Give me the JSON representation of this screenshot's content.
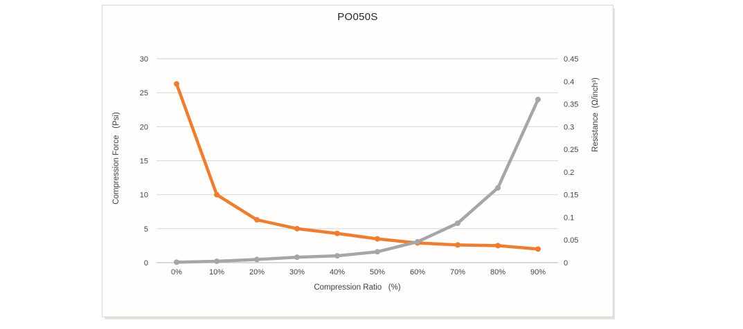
{
  "chart_data": {
    "type": "line",
    "title": "PO050S",
    "xlabel": "Compression Ratio   (%)",
    "ylabel_left": "Compression Force   (Psi)",
    "ylabel_right": "Resistance  (Ω/inch³)",
    "categories": [
      "0%",
      "10%",
      "20%",
      "30%",
      "40%",
      "50%",
      "60%",
      "70%",
      "80%",
      "90%"
    ],
    "series": [
      {
        "id": "compression-force",
        "name": "Compression Force",
        "axis": "left",
        "color": "#ED7D31",
        "values": [
          26.3,
          10.0,
          6.3,
          5.0,
          4.3,
          3.5,
          2.9,
          2.6,
          2.5,
          2.0
        ]
      },
      {
        "id": "resistance",
        "name": "Resistance",
        "axis": "right",
        "color": "#A6A6A6",
        "values": [
          0.001,
          0.003,
          0.007,
          0.012,
          0.015,
          0.024,
          0.046,
          0.087,
          0.165,
          0.36
        ]
      }
    ],
    "y_left_ticks": [
      "0",
      "5",
      "10",
      "15",
      "20",
      "25",
      "30"
    ],
    "y_right_ticks": [
      "0",
      "0.05",
      "0.1",
      "0.15",
      "0.2",
      "0.25",
      "0.3",
      "0.35",
      "0.4",
      "0.45"
    ],
    "y_left_range": [
      0,
      30
    ],
    "y_right_range": [
      0,
      0.45
    ],
    "grid": true,
    "legend": "none",
    "grid_color": "#d9d9d9",
    "axis_line_color": "#c2c2c0"
  }
}
